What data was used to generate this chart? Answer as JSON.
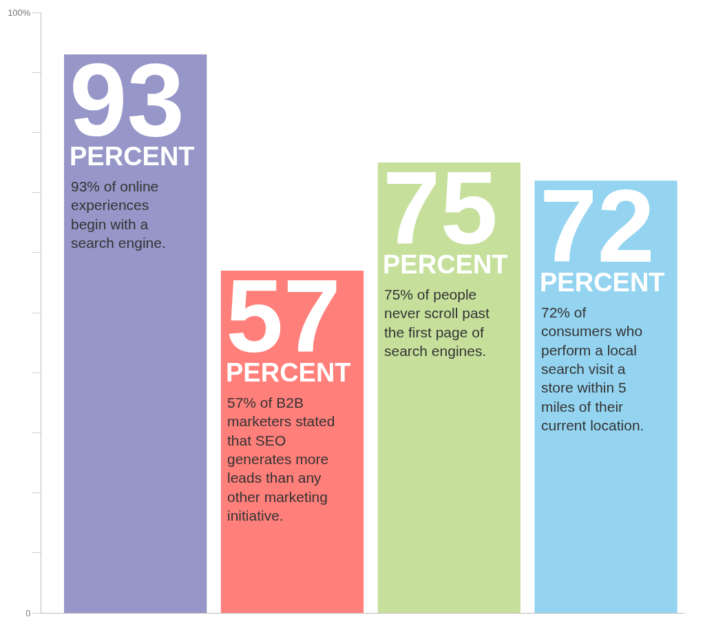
{
  "chart_data": {
    "type": "bar",
    "categories": [
      null,
      null,
      null,
      null
    ],
    "values": [
      93,
      57,
      75,
      72
    ],
    "colors": [
      "#9696c8",
      "#ff7f7a",
      "#c6e09c",
      "#94d4f0"
    ],
    "value_labels": [
      "93",
      "57",
      "75",
      "72"
    ],
    "annotations": [
      "PERCENT",
      "PERCENT",
      "PERCENT",
      "PERCENT",
      "93% of online\nexperiences\nbegin with a\nsearch engine.",
      "57% of B2B\nmarketers stated\nthat SEO\ngenerates more\nleads than any\nother marketing\ninitiative.",
      "75% of people\nnever scroll past\nthe first page of\nsearch engines.",
      "72% of\nconsumers who\nperform a local\nsearch visit a\nstore within 5\nmiles of their\ncurrent location."
    ],
    "ylim": [
      0,
      100
    ],
    "yticks": [
      {
        "value": 0,
        "label": "0"
      },
      {
        "value": 10,
        "label": null
      },
      {
        "value": 20,
        "label": null
      },
      {
        "value": 30,
        "label": null
      },
      {
        "value": 40,
        "label": null
      },
      {
        "value": 50,
        "label": null
      },
      {
        "value": 60,
        "label": null
      },
      {
        "value": 70,
        "label": null
      },
      {
        "value": 80,
        "label": null
      },
      {
        "value": 90,
        "label": null
      },
      {
        "value": 100,
        "label": "100%"
      }
    ],
    "legend": false
  }
}
